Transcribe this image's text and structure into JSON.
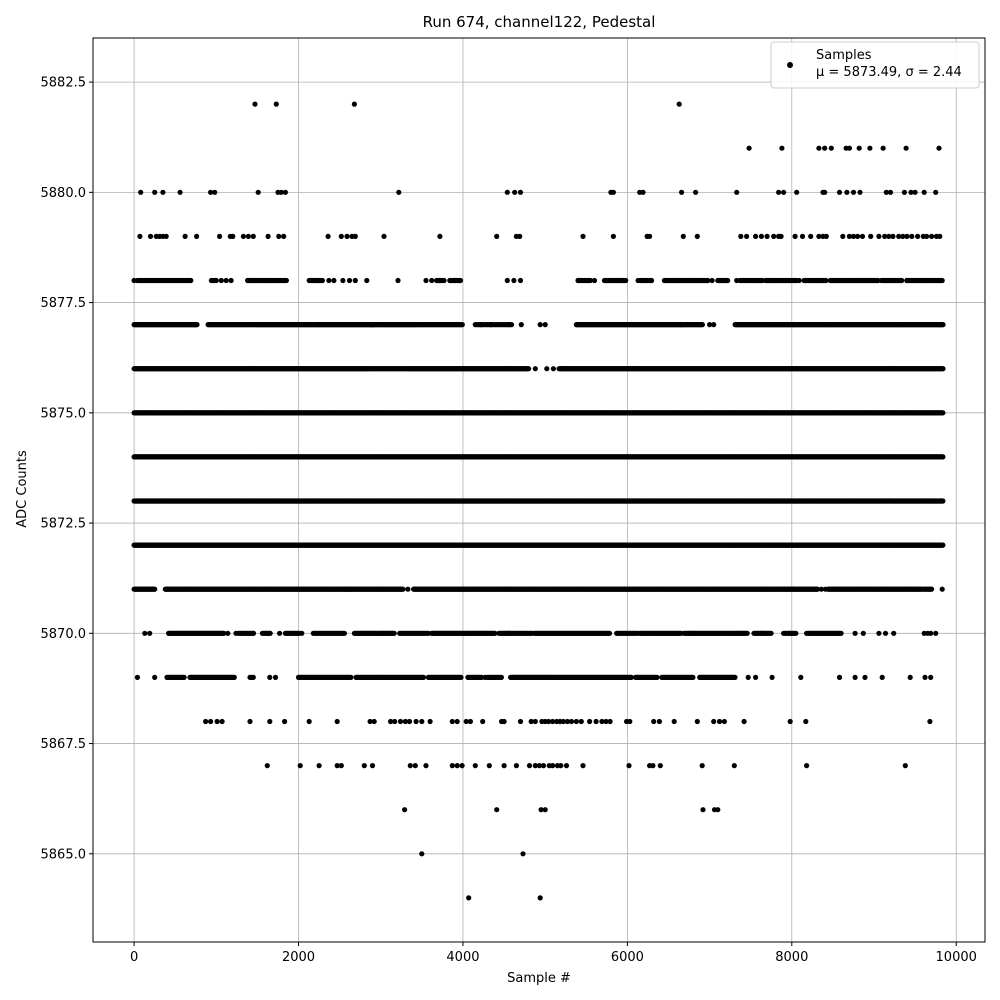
{
  "chart_data": {
    "type": "scatter",
    "title": "Run 674, channel122, Pedestal",
    "xlabel": "Sample #",
    "ylabel": "ADC Counts",
    "xlim": [
      -500,
      10350
    ],
    "ylim": [
      5863.0,
      5883.5
    ],
    "x_ticks": [
      0,
      2000,
      4000,
      6000,
      8000,
      10000
    ],
    "x_tick_labels": [
      "0",
      "2000",
      "4000",
      "6000",
      "8000",
      "10000"
    ],
    "y_ticks": [
      5865.0,
      5867.5,
      5870.0,
      5872.5,
      5875.0,
      5877.5,
      5880.0,
      5882.5
    ],
    "y_tick_labels": [
      "5865.0",
      "5867.5",
      "5870.0",
      "5872.5",
      "5875.0",
      "5877.5",
      "5880.0",
      "5882.5"
    ],
    "grid": true,
    "legend_position": "top-right",
    "legend": {
      "label": "Samples",
      "stats": "μ = 5873.49, σ = 2.44",
      "color": "#000000"
    },
    "series": [
      {
        "name": "Samples",
        "color": "#000000",
        "levels": [
          {
            "y": 5882,
            "x": [
              1470,
              1730,
              2680,
              6630
            ]
          },
          {
            "y": 5881,
            "x": [
              7480,
              7880,
              8330,
              8400,
              8480,
              8660,
              8700,
              8820,
              8950,
              9110,
              9390,
              9790
            ]
          },
          {
            "y": 5880,
            "x": [
              80,
              250,
              350,
              560,
              930,
              980,
              1510,
              1750,
              1790,
              1840,
              3220,
              4540,
              4630,
              4700,
              5800,
              5830,
              6150,
              6190,
              6660,
              6830,
              7330,
              7840,
              7900,
              8060,
              8380,
              8400,
              8580,
              8670,
              8750,
              8830,
              9150,
              9200,
              9370,
              9450,
              9500,
              9610,
              9750
            ]
          },
          {
            "y": 5879,
            "x": [
              70,
              200,
              270,
              310,
              350,
              390,
              620,
              760,
              1040,
              1170,
              1200,
              1330,
              1390,
              1450,
              1630,
              1760,
              1820,
              2360,
              2520,
              2590,
              2650,
              2690,
              3040,
              3720,
              4410,
              4650,
              4690,
              5460,
              5830,
              6240,
              6270,
              6680,
              6850,
              7380,
              7450,
              7560,
              7630,
              7700,
              7780,
              7840,
              7870,
              8040,
              8130,
              8230,
              8330,
              8380,
              8420,
              8620,
              8700,
              8750,
              8800,
              8860,
              8960,
              9060,
              9130,
              9180,
              9230,
              9300,
              9350,
              9400,
              9460,
              9530,
              9600,
              9640,
              9700,
              9760,
              9800
            ]
          },
          {
            "y": 5878,
            "x": [
              0,
              40,
              1060,
              1120,
              1180,
              1400,
              1460,
              1560,
              1630,
              2130,
              2250,
              2370,
              2430,
              2540,
              2620,
              2690,
              2830,
              3210,
              3550,
              3620,
              3720,
              3840,
              3900,
              3960,
              4540,
              4620,
              4700,
              5400,
              5600,
              5750,
              5870,
              6130,
              6600,
              7030,
              7330,
              7620,
              7770,
              8090,
              8370,
              9050,
              9400,
              9620,
              9790
            ],
            "runs": [
              [
                60,
                700,
                15
              ],
              [
                940,
                1010,
                15
              ],
              [
                1380,
                1520,
                15
              ],
              [
                1530,
                1860,
                14
              ],
              [
                2140,
                2300,
                15
              ],
              [
                3680,
                3770,
                15
              ],
              [
                3850,
                3970,
                15
              ],
              [
                5400,
                5560,
                15
              ],
              [
                5720,
                5980,
                13
              ],
              [
                6160,
                6300,
                15
              ],
              [
                6450,
                6980,
                12
              ],
              [
                7100,
                7220,
                12
              ],
              [
                7370,
                7640,
                15
              ],
              [
                7680,
                8060,
                14
              ],
              [
                8150,
                8420,
                14
              ],
              [
                8470,
                9050,
                12
              ],
              [
                9090,
                9340,
                13
              ],
              [
                9400,
                9840,
                13
              ]
            ]
          },
          {
            "y": 5877,
            "x": [
              2560,
              2900,
              3170,
              4220,
              4340,
              4560,
              4710,
              4940,
              5000,
              7000,
              7050
            ],
            "runs": [
              [
                0,
                770,
                9
              ],
              [
                900,
                1500,
                11
              ],
              [
                1500,
                2240,
                10
              ],
              [
                2240,
                2880,
                10
              ],
              [
                2880,
                3460,
                10
              ],
              [
                3470,
                3620,
                12
              ],
              [
                3620,
                4000,
                12
              ],
              [
                4150,
                4600,
                20
              ],
              [
                5380,
                6160,
                9
              ],
              [
                6160,
                6660,
                10
              ],
              [
                6660,
                6920,
                11
              ],
              [
                7310,
                9840,
                9
              ]
            ]
          },
          {
            "y": 5876,
            "x": [
              4880,
              5020,
              5100,
              5190
            ],
            "runs": [
              [
                0,
                1400,
                7
              ],
              [
                1400,
                2860,
                7
              ],
              [
                2860,
                3350,
                9
              ],
              [
                3350,
                4800,
                7
              ],
              [
                5170,
                9840,
                7
              ]
            ]
          },
          {
            "y": 5875,
            "runs": [
              [
                0,
                4100,
                6
              ],
              [
                4100,
                7300,
                6
              ],
              [
                7300,
                9840,
                6
              ]
            ]
          },
          {
            "y": 5874,
            "runs": [
              [
                0,
                4100,
                6
              ],
              [
                4100,
                7300,
                6
              ],
              [
                7300,
                9840,
                6
              ]
            ]
          },
          {
            "y": 5873,
            "runs": [
              [
                0,
                4100,
                6
              ],
              [
                4100,
                7300,
                6
              ],
              [
                7300,
                9840,
                6
              ]
            ]
          },
          {
            "y": 5872,
            "runs": [
              [
                0,
                4100,
                6
              ],
              [
                4100,
                7300,
                6
              ],
              [
                7300,
                9840,
                6
              ]
            ]
          },
          {
            "y": 5871,
            "x": [
              30,
              200,
              250,
              390,
              2620,
              3330,
              8360,
              8410,
              9690,
              9830
            ],
            "runs": [
              [
                0,
                250,
                8
              ],
              [
                380,
                1940,
                7
              ],
              [
                1940,
                3270,
                7
              ],
              [
                3400,
                8320,
                7
              ],
              [
                8440,
                9590,
                8
              ],
              [
                9600,
                9700,
                10
              ]
            ]
          },
          {
            "y": 5870,
            "x": [
              130,
              190,
              1140,
              1240,
              1450,
              1770,
              2040,
              3030,
              4070,
              4560,
              6130,
              6760,
              7350,
              7620,
              7980,
              8770,
              8870,
              9060,
              9140,
              9240,
              9610,
              9650,
              9690,
              9750
            ],
            "runs": [
              [
                420,
                1100,
                11
              ],
              [
                1270,
                1460,
                14
              ],
              [
                1560,
                1660,
                12
              ],
              [
                1840,
                2010,
                13
              ],
              [
                2180,
                2560,
                14
              ],
              [
                2680,
                3170,
                11
              ],
              [
                3230,
                3580,
                14
              ],
              [
                3620,
                4400,
                11
              ],
              [
                4440,
                4850,
                13
              ],
              [
                4870,
                5790,
                12
              ],
              [
                5870,
                6120,
                14
              ],
              [
                6150,
                6660,
                12
              ],
              [
                6690,
                7460,
                12
              ],
              [
                7540,
                7760,
                13
              ],
              [
                7900,
                8060,
                15
              ],
              [
                8180,
                8600,
                12
              ]
            ]
          },
          {
            "y": 5869,
            "x": [
              40,
              250,
              1650,
              1720,
              3800,
              4270,
              7470,
              7560,
              7760,
              8110,
              8580,
              8770,
              8890,
              9100,
              9440,
              9620,
              9690
            ],
            "runs": [
              [
                400,
                620,
                13
              ],
              [
                680,
                1220,
                11
              ],
              [
                1410,
                1450,
                20
              ],
              [
                2000,
                2640,
                13
              ],
              [
                2700,
                3150,
                12
              ],
              [
                3160,
                3530,
                12
              ],
              [
                3580,
                3980,
                12
              ],
              [
                4060,
                4240,
                13
              ],
              [
                4300,
                4480,
                14
              ],
              [
                4580,
                5070,
                10
              ],
              [
                5080,
                6050,
                11
              ],
              [
                6100,
                6360,
                13
              ],
              [
                6420,
                6800,
                13
              ],
              [
                6880,
                7310,
                11
              ]
            ]
          },
          {
            "y": 5868,
            "x": [
              870,
              930,
              1010,
              1070,
              1410,
              1650,
              1830,
              2130,
              2470,
              2870,
              2920,
              3120,
              3170,
              3240,
              3300,
              3350,
              3430,
              3500,
              3600,
              3870,
              3930,
              4040,
              4090,
              4240,
              4470,
              4500,
              4700,
              4830,
              4880,
              4960,
              5000,
              5040,
              5090,
              5140,
              5180,
              5220,
              5270,
              5320,
              5380,
              5440,
              5540,
              5620,
              5690,
              5740,
              5790,
              5990,
              6030,
              6320,
              6390,
              6570,
              6850,
              7050,
              7120,
              7180,
              7420,
              7980,
              8170,
              9680
            ]
          },
          {
            "y": 5867,
            "x": [
              1620,
              2020,
              2250,
              2470,
              2520,
              2800,
              2900,
              3360,
              3420,
              3550,
              3870,
              3930,
              3990,
              4150,
              4320,
              4500,
              4650,
              4810,
              4880,
              4930,
              4980,
              5050,
              5090,
              5150,
              5190,
              5260,
              5460,
              6020,
              6270,
              6310,
              6400,
              6910,
              7300,
              8180,
              9380
            ]
          },
          {
            "y": 5866,
            "x": [
              3290,
              4410,
              4950,
              5000,
              6920,
              7060,
              7100
            ]
          },
          {
            "y": 5865,
            "x": [
              3500,
              4730
            ]
          },
          {
            "y": 5864,
            "x": [
              4070,
              4940
            ]
          }
        ]
      }
    ]
  }
}
